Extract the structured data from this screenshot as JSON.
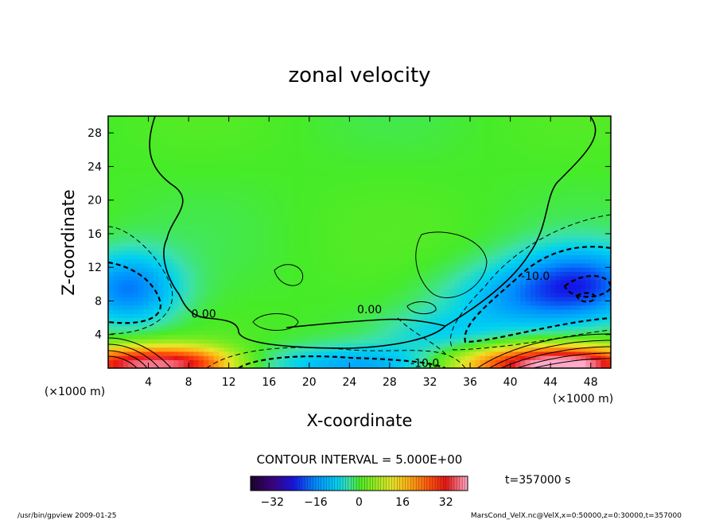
{
  "chart_data": {
    "type": "heatmap",
    "title": "zonal velocity",
    "xlabel": "X-coordinate",
    "ylabel": "Z-coordinate",
    "x_unit_label": "(×1000 m)",
    "y_unit_label": "(×1000 m)",
    "xlim": [
      0,
      50
    ],
    "ylim": [
      0,
      30
    ],
    "x_ticks": [
      4,
      8,
      12,
      16,
      20,
      24,
      28,
      32,
      36,
      40,
      44,
      48
    ],
    "y_ticks": [
      4,
      8,
      12,
      16,
      20,
      24,
      28
    ],
    "contour_interval_text": "CONTOUR INTERVAL = 5.000E+00",
    "contour_labels": [
      {
        "text": "0.00",
        "x": 9.5,
        "z": 6.5
      },
      {
        "text": "0.00",
        "x": 26,
        "z": 7
      },
      {
        "text": "-10.0",
        "x": 31.5,
        "z": 0.6
      },
      {
        "text": "-10.0",
        "x": 42.5,
        "z": 11
      }
    ],
    "colorbar": {
      "min": -40,
      "max": 40,
      "ticks": [
        -32,
        -16,
        0,
        16,
        32
      ]
    },
    "field_features": [
      {
        "kind": "jet",
        "x": 3,
        "z": 0.5,
        "value": 35,
        "sx": 5,
        "sz": 1.5
      },
      {
        "kind": "jet",
        "x": 46,
        "z": 0.5,
        "value": 38,
        "sx": 5,
        "sz": 1.5
      },
      {
        "kind": "jet",
        "x": 38,
        "z": 0.5,
        "value": 16,
        "sx": 5,
        "sz": 1.6
      },
      {
        "kind": "jet",
        "x": 9,
        "z": 0.6,
        "value": 12,
        "sx": 3,
        "sz": 1.4
      },
      {
        "kind": "jet",
        "x": 25,
        "z": 0.4,
        "value": -12,
        "sx": 7,
        "sz": 1.6
      },
      {
        "kind": "jet",
        "x": 2,
        "z": 9.5,
        "value": -17,
        "sx": 3.5,
        "sz": 3
      },
      {
        "kind": "jet",
        "x": 47,
        "z": 10,
        "value": -20,
        "sx": 4.5,
        "sz": 3
      },
      {
        "kind": "jet",
        "x": 40,
        "z": 8,
        "value": -10,
        "sx": 5,
        "sz": 3
      },
      {
        "kind": "jet",
        "x": 33,
        "z": 4,
        "value": -6,
        "sx": 4,
        "sz": 2
      }
    ]
  },
  "time_label": "t=357000 s",
  "footer": {
    "left": "/usr/bin/gpview  2009-01-25",
    "right": "MarsCond_VelX.nc@VelX,x=0:50000,z=0:30000,t=357000"
  }
}
